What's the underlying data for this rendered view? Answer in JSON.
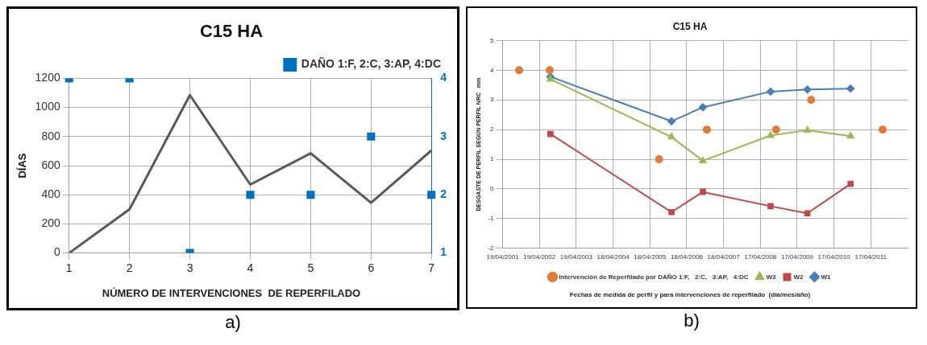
{
  "chart_data": [
    {
      "type": "line",
      "title": "C15 HA",
      "xlabel": "NÚMERO DE INTERVENCIONES  DE REPERFILADO",
      "ylabel": "DÍAS",
      "annotations": [
        "a)"
      ],
      "categories": [
        "1",
        "2",
        "3",
        "4",
        "5",
        "6",
        "7"
      ],
      "series": [
        {
          "type": "line",
          "color": "#595959",
          "marker": "none",
          "values": [
            0,
            300,
            1085,
            470,
            685,
            345,
            705
          ]
        },
        {
          "type": "scatter",
          "name": "DAÑO 1:F, 2:C, 3:AP, 4:DC",
          "color": "#0070c0",
          "marker": "square",
          "axis": "y2",
          "values": [
            4,
            4,
            1,
            2,
            2,
            3,
            2
          ]
        }
      ],
      "ylim": [
        0,
        1200
      ],
      "yticks": [
        0,
        200,
        400,
        600,
        800,
        1000,
        1200
      ],
      "y2lim": [
        1,
        4
      ],
      "y2ticks": [
        1,
        2,
        3,
        4
      ],
      "grid": true,
      "legend": "top right"
    },
    {
      "type": "line",
      "title": "C15 HA",
      "xlabel": "Fechas de medida de perfil y para intervenciones de reperfilado  (dia/mes/año)",
      "ylabel": "DESGASTE DE PERFIL SEGÚN PERFIL NRC   mm",
      "annotations": [
        "b)"
      ],
      "series": [
        {
          "name": "W1",
          "color": "#4a7ebb",
          "marker": "diamond",
          "x": [
            "2002-08-06",
            "2005-11-18",
            "2006-09-25",
            "2008-07-27",
            "2009-07-27",
            "2010-09-28"
          ],
          "values": [
            3.78,
            2.28,
            2.75,
            3.28,
            3.35,
            3.38
          ]
        },
        {
          "name": "W2",
          "color": "#be4b48",
          "marker": "square",
          "x": [
            "2002-08-06",
            "2005-11-18",
            "2006-09-25",
            "2008-07-27",
            "2009-07-27",
            "2010-09-28"
          ],
          "values": [
            1.85,
            -0.78,
            -0.1,
            -0.58,
            -0.82,
            0.17
          ]
        },
        {
          "name": "W3",
          "color": "#98b954",
          "marker": "triangle",
          "x": [
            "2002-08-06",
            "2005-11-18",
            "2006-09-25",
            "2008-07-27",
            "2009-07-27",
            "2010-09-28"
          ],
          "values": [
            3.7,
            1.75,
            0.95,
            1.8,
            1.98,
            1.78
          ]
        },
        {
          "type": "scatter",
          "name": "Intervención de Reperfilado por DAÑO 1:F,   2:C,   3:AP,   4:DC",
          "color": "#e07b39",
          "marker": "circle",
          "x": [
            "2001-09-30",
            "2002-07-30",
            "2005-07-18",
            "2006-11-04",
            "2008-09-20",
            "2009-09-02",
            "2011-08-12"
          ],
          "values": [
            4,
            4,
            1,
            2,
            2,
            3,
            2
          ]
        }
      ],
      "xlim": [
        "2001-04-19",
        "2012-04-16"
      ],
      "xticks": [
        {
          "value": "2001-04-19",
          "label": "19/04/2001"
        },
        {
          "value": "2002-04-19",
          "label": "19/04/2002"
        },
        {
          "value": "2003-04-19",
          "label": "19/04/2003"
        },
        {
          "value": "2004-04-18",
          "label": "18/04/2004"
        },
        {
          "value": "2005-04-18",
          "label": "18/04/2005"
        },
        {
          "value": "2006-04-18",
          "label": "18/04/2006"
        },
        {
          "value": "2007-04-18",
          "label": "18/04/2007"
        },
        {
          "value": "2008-04-17",
          "label": "17/04/2008"
        },
        {
          "value": "2009-04-17",
          "label": "17/04/2009"
        },
        {
          "value": "2010-04-17",
          "label": "17/04/2010"
        },
        {
          "value": "2011-04-17",
          "label": "17/04/2011"
        }
      ],
      "ylim": [
        -2,
        5
      ],
      "yticks": [
        -2,
        -1,
        0,
        1,
        2,
        3,
        4,
        5
      ],
      "grid": true,
      "legend": "bottom"
    }
  ]
}
